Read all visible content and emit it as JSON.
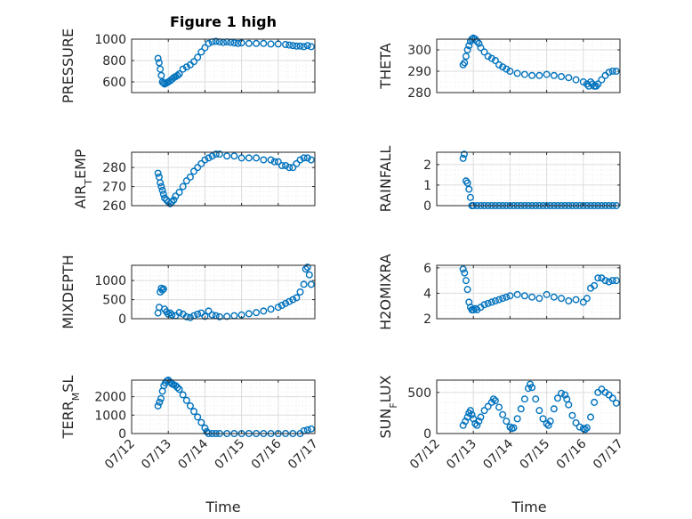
{
  "figure": {
    "title": "Figure 1 high"
  },
  "colors": {
    "marker": "#0072BD",
    "axis": "#262626"
  },
  "chart_data": [
    {
      "type": "scatter",
      "ylabel": "PRESSURE",
      "ylim": [
        500,
        1000
      ],
      "yticks": [
        600,
        800,
        1000
      ],
      "ytick_labels": [
        "600",
        "800",
        "1000"
      ],
      "xlim": [
        0,
        5
      ],
      "xtick_labels": [
        "07/12",
        "07/13",
        "07/14",
        "07/15",
        "07/16",
        "07/17"
      ],
      "grid": true,
      "show_xticklabels": false,
      "x": [
        0.72,
        0.75,
        0.78,
        0.81,
        0.84,
        0.87,
        0.9,
        0.95,
        1.0,
        1.05,
        1.1,
        1.15,
        1.2,
        1.25,
        1.3,
        1.4,
        1.5,
        1.6,
        1.7,
        1.8,
        1.9,
        2.0,
        2.1,
        2.2,
        2.3,
        2.4,
        2.5,
        2.6,
        2.7,
        2.8,
        2.9,
        3.0,
        3.2,
        3.4,
        3.6,
        3.8,
        4.0,
        4.2,
        4.3,
        4.4,
        4.5,
        4.6,
        4.7,
        4.8,
        4.9
      ],
      "y": [
        820,
        780,
        720,
        660,
        600,
        590,
        580,
        590,
        600,
        610,
        625,
        640,
        650,
        660,
        675,
        720,
        740,
        760,
        790,
        830,
        880,
        920,
        960,
        975,
        980,
        975,
        970,
        975,
        970,
        965,
        960,
        965,
        960,
        960,
        960,
        955,
        955,
        950,
        945,
        940,
        935,
        935,
        930,
        940,
        930
      ]
    },
    {
      "type": "scatter",
      "ylabel": "THETA",
      "ylim": [
        280,
        305
      ],
      "yticks": [
        280,
        290,
        300
      ],
      "ytick_labels": [
        "280",
        "290",
        "300"
      ],
      "xlim": [
        0,
        5
      ],
      "xtick_labels": [
        "07/12",
        "07/13",
        "07/14",
        "07/15",
        "07/16",
        "07/17"
      ],
      "grid": true,
      "show_xticklabels": false,
      "x": [
        0.72,
        0.76,
        0.8,
        0.84,
        0.88,
        0.92,
        0.96,
        1.0,
        1.05,
        1.1,
        1.15,
        1.2,
        1.3,
        1.4,
        1.5,
        1.6,
        1.7,
        1.8,
        1.9,
        2.0,
        2.2,
        2.4,
        2.6,
        2.8,
        3.0,
        3.2,
        3.4,
        3.6,
        3.8,
        4.0,
        4.1,
        4.15,
        4.2,
        4.25,
        4.3,
        4.35,
        4.4,
        4.5,
        4.6,
        4.7,
        4.8,
        4.9
      ],
      "y": [
        293,
        294,
        297,
        300,
        302,
        304,
        305,
        305.5,
        305,
        304,
        303,
        301,
        299,
        297,
        296,
        295,
        293,
        292,
        291,
        290,
        289,
        288.5,
        288,
        288,
        288.5,
        288,
        287.5,
        287,
        286,
        285,
        284,
        283,
        285,
        284,
        283,
        283,
        284,
        286,
        288,
        289.5,
        290,
        290
      ]
    },
    {
      "type": "scatter",
      "ylabel": "AIR_TEMP",
      "ylim": [
        260,
        288
      ],
      "yticks": [
        260,
        270,
        280
      ],
      "ytick_labels": [
        "260",
        "270",
        "280"
      ],
      "xlim": [
        0,
        5
      ],
      "xtick_labels": [
        "07/12",
        "07/13",
        "07/14",
        "07/15",
        "07/16",
        "07/17"
      ],
      "grid": true,
      "show_xticklabels": false,
      "x": [
        0.72,
        0.75,
        0.78,
        0.81,
        0.84,
        0.87,
        0.9,
        0.95,
        1.0,
        1.05,
        1.1,
        1.15,
        1.2,
        1.3,
        1.4,
        1.5,
        1.6,
        1.7,
        1.8,
        1.9,
        2.0,
        2.1,
        2.2,
        2.3,
        2.4,
        2.6,
        2.8,
        3.0,
        3.2,
        3.4,
        3.6,
        3.8,
        3.9,
        4.0,
        4.1,
        4.2,
        4.3,
        4.4,
        4.5,
        4.6,
        4.7,
        4.8,
        4.9
      ],
      "y": [
        277,
        275,
        272,
        270,
        268,
        266,
        264,
        263,
        262,
        261,
        262,
        263,
        265,
        267,
        270,
        273,
        275,
        278,
        280,
        282,
        284,
        285,
        286,
        287,
        287,
        286,
        286,
        285,
        285,
        285,
        284,
        284,
        283,
        283,
        281,
        281,
        280,
        280,
        282,
        284,
        285,
        285,
        284
      ]
    },
    {
      "type": "scatter",
      "ylabel": "RAINFALL",
      "ylim": [
        0,
        2.6
      ],
      "yticks": [
        0,
        1,
        2
      ],
      "ytick_labels": [
        "0",
        "1",
        "2"
      ],
      "xlim": [
        0,
        5
      ],
      "xtick_labels": [
        "07/12",
        "07/13",
        "07/14",
        "07/15",
        "07/16",
        "07/17"
      ],
      "grid": true,
      "show_xticklabels": false,
      "x": [
        0.72,
        0.75,
        0.8,
        0.84,
        0.88,
        0.92,
        0.96,
        1.0,
        1.1,
        1.2,
        1.3,
        1.4,
        1.5,
        1.6,
        1.7,
        1.8,
        1.9,
        2.0,
        2.1,
        2.2,
        2.3,
        2.4,
        2.5,
        2.6,
        2.7,
        2.8,
        2.9,
        3.0,
        3.1,
        3.2,
        3.3,
        3.4,
        3.5,
        3.6,
        3.7,
        3.8,
        3.9,
        4.0,
        4.1,
        4.2,
        4.3,
        4.4,
        4.5,
        4.6,
        4.7,
        4.8,
        4.9
      ],
      "y": [
        2.3,
        2.5,
        1.2,
        1.1,
        0.8,
        0.4,
        0,
        0,
        0,
        0,
        0,
        0,
        0,
        0,
        0,
        0,
        0,
        0,
        0,
        0,
        0,
        0,
        0,
        0,
        0,
        0,
        0,
        0,
        0,
        0,
        0,
        0,
        0,
        0,
        0,
        0,
        0,
        0,
        0,
        0,
        0,
        0,
        0,
        0,
        0,
        0,
        0
      ]
    },
    {
      "type": "scatter",
      "ylabel": "MIXDEPTH",
      "ylim": [
        0,
        1400
      ],
      "yticks": [
        0,
        500,
        1000
      ],
      "ytick_labels": [
        "0",
        "500",
        "1000"
      ],
      "xlim": [
        0,
        5
      ],
      "xtick_labels": [
        "07/12",
        "07/13",
        "07/14",
        "07/15",
        "07/16",
        "07/17"
      ],
      "grid": true,
      "show_xticklabels": false,
      "x": [
        0.72,
        0.75,
        0.78,
        0.81,
        0.84,
        0.87,
        0.9,
        0.95,
        1.0,
        1.05,
        1.1,
        1.2,
        1.3,
        1.4,
        1.5,
        1.6,
        1.7,
        1.8,
        1.9,
        2.0,
        2.1,
        2.2,
        2.3,
        2.4,
        2.6,
        2.8,
        3.0,
        3.2,
        3.4,
        3.6,
        3.8,
        4.0,
        4.1,
        4.2,
        4.3,
        4.4,
        4.5,
        4.6,
        4.7,
        4.75,
        4.8,
        4.85,
        4.9
      ],
      "y": [
        150,
        300,
        700,
        800,
        750,
        780,
        250,
        180,
        120,
        150,
        100,
        80,
        160,
        120,
        50,
        30,
        80,
        120,
        150,
        60,
        200,
        100,
        80,
        50,
        60,
        80,
        100,
        130,
        160,
        200,
        250,
        300,
        350,
        400,
        450,
        500,
        550,
        700,
        900,
        1300,
        1350,
        1150,
        900
      ]
    },
    {
      "type": "scatter",
      "ylabel": "H2OMIXRA",
      "ylim": [
        2,
        6.2
      ],
      "yticks": [
        2,
        4,
        6
      ],
      "ytick_labels": [
        "2",
        "4",
        "6"
      ],
      "xlim": [
        0,
        5
      ],
      "xtick_labels": [
        "07/12",
        "07/13",
        "07/14",
        "07/15",
        "07/16",
        "07/17"
      ],
      "grid": true,
      "show_xticklabels": false,
      "x": [
        0.72,
        0.76,
        0.8,
        0.84,
        0.88,
        0.92,
        0.96,
        1.0,
        1.05,
        1.1,
        1.2,
        1.3,
        1.4,
        1.5,
        1.6,
        1.7,
        1.8,
        1.9,
        2.0,
        2.2,
        2.4,
        2.6,
        2.8,
        3.0,
        3.2,
        3.4,
        3.6,
        3.8,
        4.0,
        4.1,
        4.2,
        4.3,
        4.4,
        4.5,
        4.6,
        4.7,
        4.8,
        4.9
      ],
      "y": [
        5.9,
        5.6,
        5.0,
        4.3,
        3.3,
        2.9,
        2.7,
        2.7,
        2.8,
        2.7,
        2.9,
        3.1,
        3.2,
        3.3,
        3.4,
        3.5,
        3.6,
        3.7,
        3.8,
        3.9,
        3.8,
        3.7,
        3.6,
        3.9,
        3.7,
        3.6,
        3.4,
        3.5,
        3.3,
        3.6,
        4.4,
        4.6,
        5.2,
        5.2,
        5.0,
        4.9,
        5.0,
        5.0
      ]
    },
    {
      "type": "scatter",
      "ylabel": "TERR_MSL",
      "ylim": [
        0,
        2900
      ],
      "yticks": [
        0,
        1000,
        2000
      ],
      "ytick_labels": [
        "0",
        "1000",
        "2000"
      ],
      "xlim": [
        0,
        5
      ],
      "xtick_labels": [
        "07/12",
        "07/13",
        "07/14",
        "07/15",
        "07/16",
        "07/17"
      ],
      "grid": true,
      "show_xticklabels": true,
      "x": [
        0.72,
        0.76,
        0.8,
        0.84,
        0.88,
        0.92,
        0.96,
        1.0,
        1.05,
        1.1,
        1.15,
        1.2,
        1.25,
        1.3,
        1.4,
        1.5,
        1.6,
        1.7,
        1.8,
        1.9,
        2.0,
        2.05,
        2.1,
        2.2,
        2.3,
        2.4,
        2.6,
        2.8,
        3.0,
        3.2,
        3.4,
        3.6,
        3.8,
        4.0,
        4.2,
        4.4,
        4.6,
        4.7,
        4.8,
        4.9
      ],
      "y": [
        1500,
        1700,
        1900,
        2300,
        2600,
        2750,
        2850,
        2900,
        2800,
        2700,
        2650,
        2600,
        2500,
        2400,
        2100,
        1800,
        1500,
        1200,
        900,
        600,
        300,
        100,
        0,
        0,
        0,
        0,
        0,
        0,
        0,
        0,
        0,
        0,
        0,
        0,
        0,
        0,
        0,
        150,
        200,
        250
      ]
    },
    {
      "type": "scatter",
      "ylabel": "SUN_FLUX",
      "ylim": [
        0,
        650
      ],
      "yticks": [
        0,
        500
      ],
      "ytick_labels": [
        "0",
        "500"
      ],
      "xlim": [
        0,
        5
      ],
      "xtick_labels": [
        "07/12",
        "07/13",
        "07/14",
        "07/15",
        "07/16",
        "07/17"
      ],
      "grid": true,
      "show_xticklabels": true,
      "x": [
        0.72,
        0.78,
        0.84,
        0.88,
        0.92,
        0.96,
        1.0,
        1.05,
        1.1,
        1.15,
        1.2,
        1.3,
        1.4,
        1.5,
        1.55,
        1.6,
        1.7,
        1.8,
        1.9,
        2.0,
        2.05,
        2.1,
        2.2,
        2.3,
        2.4,
        2.5,
        2.55,
        2.6,
        2.7,
        2.8,
        2.9,
        3.0,
        3.05,
        3.1,
        3.2,
        3.3,
        3.4,
        3.5,
        3.55,
        3.6,
        3.7,
        3.8,
        3.9,
        4.0,
        4.05,
        4.1,
        4.2,
        4.3,
        4.4,
        4.5,
        4.6,
        4.7,
        4.8,
        4.9
      ],
      "y": [
        100,
        150,
        200,
        250,
        280,
        230,
        180,
        120,
        100,
        150,
        200,
        280,
        330,
        380,
        420,
        400,
        320,
        230,
        150,
        80,
        60,
        70,
        180,
        300,
        420,
        550,
        600,
        560,
        420,
        280,
        180,
        120,
        100,
        150,
        300,
        430,
        490,
        470,
        420,
        350,
        220,
        130,
        80,
        60,
        50,
        70,
        200,
        380,
        500,
        540,
        500,
        470,
        430,
        370
      ]
    }
  ],
  "x_axis_label": "Time"
}
